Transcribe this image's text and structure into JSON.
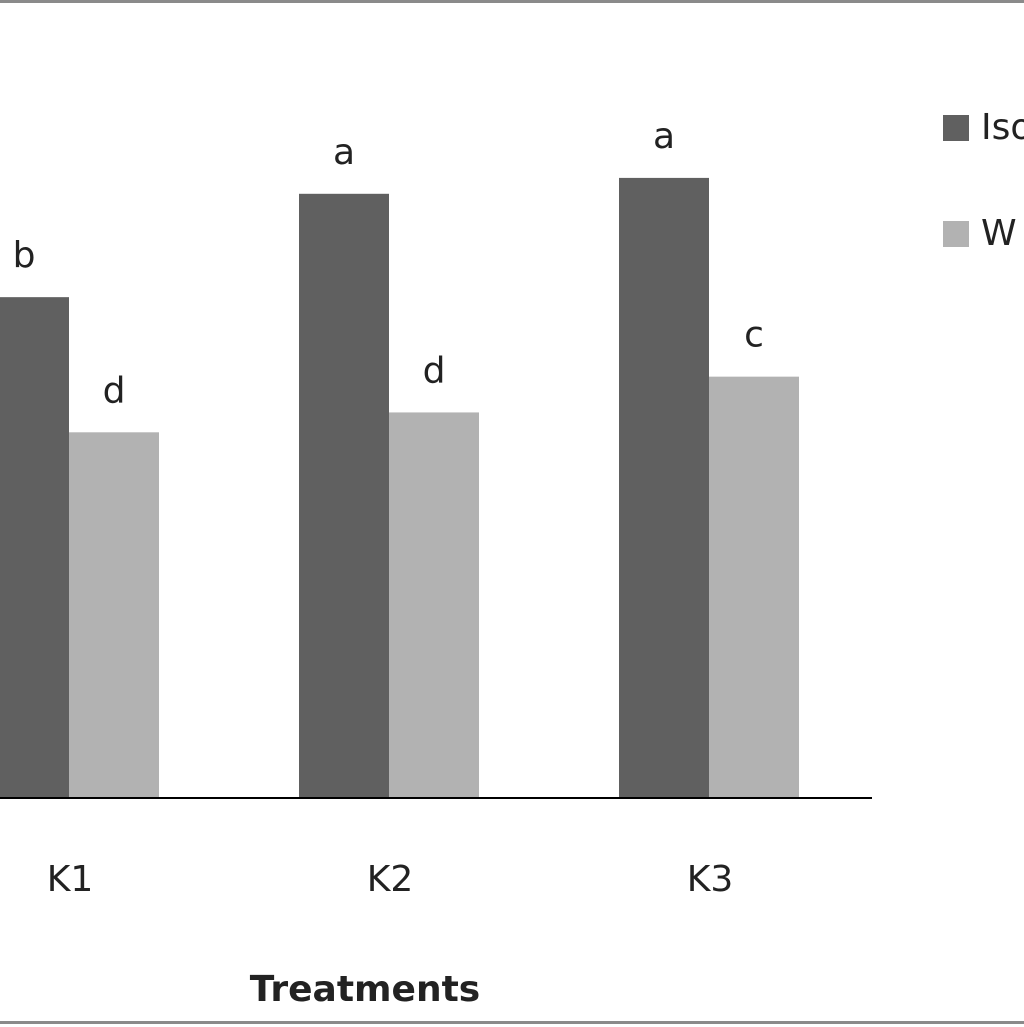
{
  "chart_data": {
    "type": "bar",
    "categories": [
      "K1",
      "K2",
      "K3"
    ],
    "series": [
      {
        "name": "Iso",
        "color": "#606060",
        "values": [
          63,
          76,
          78
        ],
        "labels": [
          "b",
          "a",
          "a"
        ]
      },
      {
        "name": "W",
        "color": "#b2b2b2",
        "values": [
          46,
          48.5,
          53
        ],
        "labels": [
          "d",
          "d",
          "c"
        ]
      }
    ],
    "title": "",
    "xlabel": "Treatments",
    "ylabel": "",
    "ylim": [
      0,
      100
    ],
    "grid": false,
    "legend_position": "top-right"
  }
}
